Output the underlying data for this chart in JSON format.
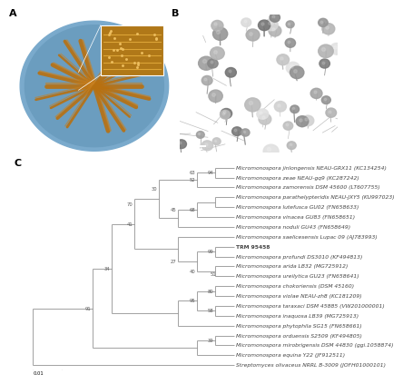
{
  "taxa": [
    "Micromonospora jinlongensis NEAU-GRX11 (KC134254)",
    "Micromonospora zeae NEAU-gq9 (KC287242)",
    "Micromonospora zamorensis DSM 45600 (LT607755)",
    "Micromonospora parathelypteridis NEAU-JXY5 (KU997023)",
    "Micromonospora lutefusca GU02 (FN658633)",
    "Micromonospora vinacea GU83 (FN658651)",
    "Micromonospora noduli GU43 (FN658649)",
    "Micromonospora saelicesensis Lupac 09 (AJ783993)",
    "TRM 95458",
    "Micromonospora profundi DS3010 (KF494813)",
    "Micromonospora arida LB32 (MG725912)",
    "Micromonospora ureilytica GU23 (FN658641)",
    "Micromonospora chokoriensis (DSM 45160)",
    "Micromonospora violae NEAU-zh8 (KC181209)",
    "Micromonospora taraxaci DSM 45885 (VW201000001)",
    "Micromonospora inaquosa LB39 (MG725913)",
    "Micromonospora phytophila SG15 (FN658661)",
    "Micromonospora orduensis S2509 (KF494805)",
    "Micromonospora mirobrigensis DSM 44830 (ggi.1058874)",
    "Micromonospora equina Y22 (JF912511)",
    "Streptomyces olivaceus NRRL B-3009 (JOFH01000101)"
  ],
  "line_color": "#888888",
  "text_color": "#444444",
  "bootstrap_color": "#555555",
  "scale_label": "0.01"
}
